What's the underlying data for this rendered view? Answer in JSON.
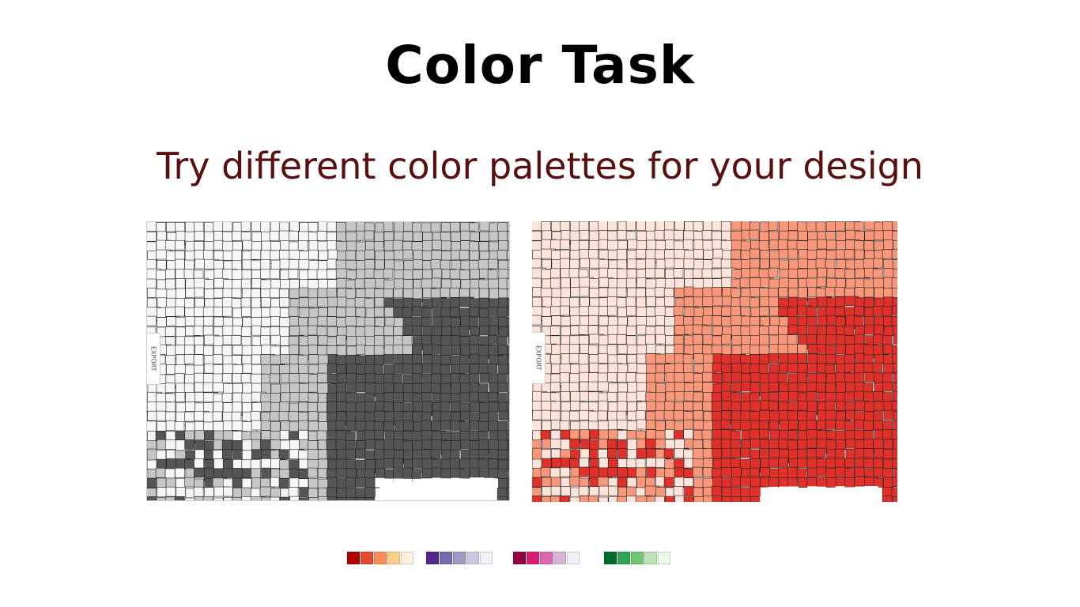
{
  "slide": {
    "title": "Color Task",
    "subtitle": "Try different color palettes for your design"
  },
  "maps": {
    "export_label": "EXPORT",
    "gray_palette": [
      "#f6f6f6",
      "#c6c6c6",
      "#555555",
      "#ffffff"
    ],
    "red_palette": [
      "#fde4da",
      "#f9977a",
      "#e0302a",
      "#ffffff"
    ]
  },
  "palettes": [
    {
      "name": "reds-oranges",
      "colors": [
        "#b30000",
        "#e34a33",
        "#fc8d59",
        "#fdcc8a",
        "#fef0d9"
      ]
    },
    {
      "name": "purples",
      "colors": [
        "#54278f",
        "#756bb1",
        "#9e9ac8",
        "#cbc9e2",
        "#f2f0f7"
      ]
    },
    {
      "name": "pinks",
      "colors": [
        "#980043",
        "#dd1c77",
        "#df65b0",
        "#d7b5d8",
        "#f1eef6"
      ]
    },
    {
      "name": "greens",
      "colors": [
        "#006d2c",
        "#31a354",
        "#74c476",
        "#bae4b3",
        "#edf8e9"
      ]
    }
  ]
}
